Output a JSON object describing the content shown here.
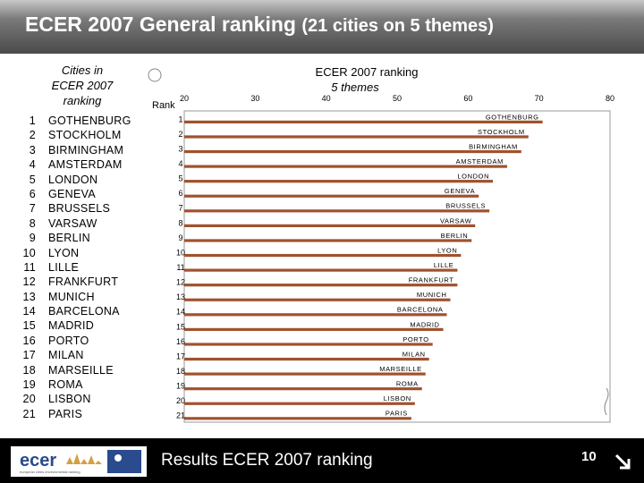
{
  "header": {
    "title_main": "ECER 2007 General ranking",
    "title_sub": "(21 cities on 5 themes)"
  },
  "left_panel": {
    "title_line1": "Cities in",
    "title_line2": "ECER 2007",
    "title_line3": "ranking",
    "rows": [
      {
        "rank": "1",
        "city": "GOTHENBURG"
      },
      {
        "rank": "2",
        "city": "STOCKHOLM"
      },
      {
        "rank": "3",
        "city": "BIRMINGHAM"
      },
      {
        "rank": "4",
        "city": "AMSTERDAM"
      },
      {
        "rank": "5",
        "city": "LONDON"
      },
      {
        "rank": "6",
        "city": "GENEVA"
      },
      {
        "rank": "7",
        "city": "BRUSSELS"
      },
      {
        "rank": "8",
        "city": "VARSAW"
      },
      {
        "rank": "9",
        "city": "BERLIN"
      },
      {
        "rank": "10",
        "city": "LYON"
      },
      {
        "rank": "11",
        "city": "LILLE"
      },
      {
        "rank": "12",
        "city": "FRANKFURT"
      },
      {
        "rank": "13",
        "city": "MUNICH"
      },
      {
        "rank": "14",
        "city": "BARCELONA"
      },
      {
        "rank": "15",
        "city": "MADRID"
      },
      {
        "rank": "16",
        "city": "PORTO"
      },
      {
        "rank": "17",
        "city": "MILAN"
      },
      {
        "rank": "18",
        "city": "MARSEILLE"
      },
      {
        "rank": "19",
        "city": "ROMA"
      },
      {
        "rank": "20",
        "city": "LISBON"
      },
      {
        "rank": "21",
        "city": "PARIS"
      }
    ]
  },
  "chart_data": {
    "type": "bar",
    "orientation": "horizontal",
    "title_line1": "ECER 2007 ranking",
    "title_line2": "5 themes",
    "axis_label": "Rank",
    "xlim": [
      20,
      80
    ],
    "xticks": [
      "20",
      "30",
      "40",
      "50",
      "60",
      "70",
      "80"
    ],
    "grid": false,
    "bar_color": "#a0522d",
    "categories": [
      "1",
      "2",
      "3",
      "4",
      "5",
      "6",
      "7",
      "8",
      "9",
      "10",
      "11",
      "12",
      "13",
      "14",
      "15",
      "16",
      "17",
      "18",
      "19",
      "20",
      "21"
    ],
    "labels": [
      "GOTHENBURG",
      "STOCKHOLM",
      "BIRMINGHAM",
      "AMSTERDAM",
      "LONDON",
      "GENEVA",
      "BRUSSELS",
      "VARSAW",
      "BERLIN",
      "LYON",
      "LILLE",
      "FRANKFURT",
      "MUNICH",
      "BARCELONA",
      "MADRID",
      "PORTO",
      "MILAN",
      "MARSEILLE",
      "ROMA",
      "LISBON",
      "PARIS"
    ],
    "values": [
      70.5,
      68.5,
      67.5,
      65.5,
      63.5,
      61.5,
      63,
      61,
      60.5,
      59,
      58.5,
      58.5,
      57.5,
      57,
      56.5,
      55,
      54.5,
      54,
      53.5,
      52.5,
      52
    ]
  },
  "footer": {
    "logo_text": "ecer",
    "logo_tagline": "european cities environmental ranking",
    "caption": "Results ECER 2007 ranking",
    "page_number": "10"
  },
  "colors": {
    "header_text": "#ffffff",
    "bar": "#a0522d",
    "chart_border": "#999999",
    "footer_bg": "#000000"
  }
}
